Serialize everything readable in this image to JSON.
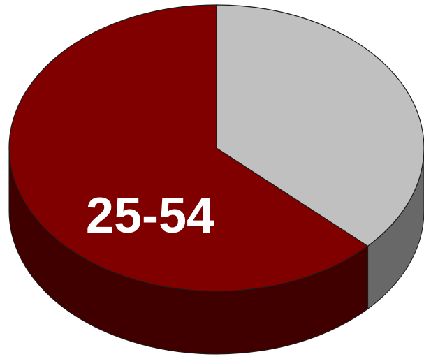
{
  "chart_data": {
    "type": "pie",
    "style": "3d",
    "slices": [
      {
        "label": "25-54",
        "value": 63,
        "color": "#800000",
        "side_color": "#400000",
        "show_label": true
      },
      {
        "label": "",
        "value": 37,
        "color": "#c0c0c0",
        "side_color": "#686868",
        "show_label": false
      }
    ]
  }
}
